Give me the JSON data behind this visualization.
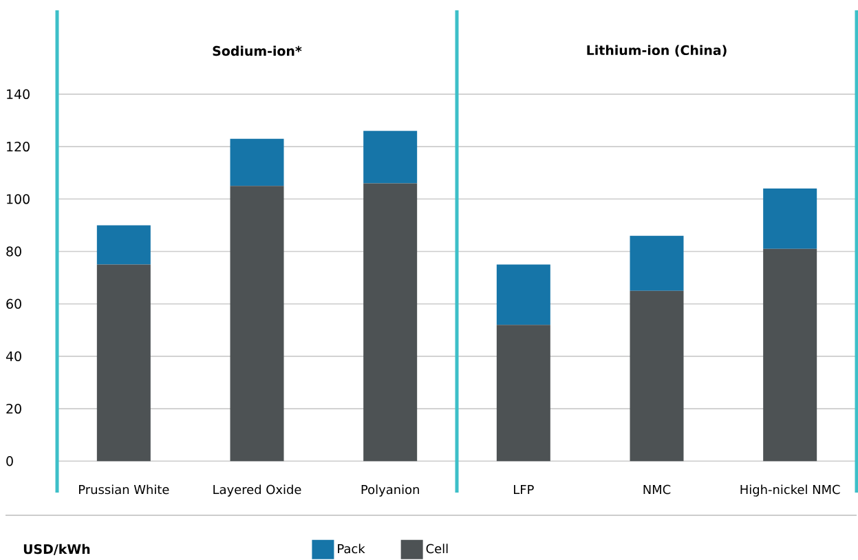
{
  "chart_data": {
    "type": "bar",
    "stacked": true,
    "categories": [
      "Prussian White",
      "Layered Oxide",
      "Polyanion",
      "LFP",
      "NMC",
      "High-nickel NMC"
    ],
    "series": [
      {
        "name": "Cell",
        "color": "#4d5254",
        "values": [
          75,
          105,
          106,
          52,
          65,
          81
        ]
      },
      {
        "name": "Pack",
        "color": "#1675a8",
        "values": [
          15,
          18,
          20,
          23,
          21,
          23
        ]
      }
    ],
    "ylabel": "USD/kWh",
    "ylim": [
      -12,
      172
    ],
    "yticks": [
      0,
      20,
      40,
      60,
      80,
      100,
      120,
      140
    ],
    "grid": "y",
    "legend": "bottom",
    "annotations": [
      "Sodium-ion*",
      "Lithium-ion (China)"
    ]
  }
}
